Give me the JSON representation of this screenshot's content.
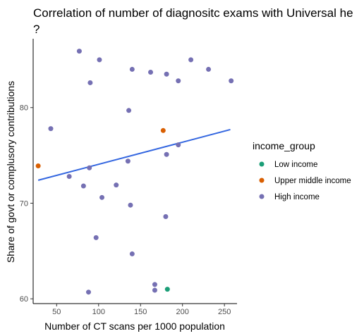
{
  "chart_data": {
    "type": "scatter",
    "title_line1": "Correlation of number of diagnositc exams with Universal he",
    "title_line2": "?",
    "xlabel": "Number of CT scans per 1000 population",
    "ylabel": "Share of govt or complusory contributions",
    "xlim": [
      22,
      265
    ],
    "ylim": [
      59.5,
      87.2
    ],
    "x_ticks": [
      50,
      100,
      150,
      200,
      250
    ],
    "y_ticks": [
      60,
      70,
      80
    ],
    "legend": {
      "title": "income_group",
      "position": "right",
      "entries": [
        {
          "label": "Low income",
          "color": "#1b9e77"
        },
        {
          "label": "Upper middle income",
          "color": "#d95f02"
        },
        {
          "label": "High income",
          "color": "#7570b3"
        }
      ]
    },
    "series": [
      {
        "name": "Low income",
        "color": "#1b9e77",
        "points": [
          [
            182,
            61.0
          ]
        ]
      },
      {
        "name": "Upper middle income",
        "color": "#d95f02",
        "points": [
          [
            28,
            73.9
          ],
          [
            177,
            77.6
          ]
        ]
      },
      {
        "name": "High income",
        "color": "#7570b3",
        "points": [
          [
            77,
            85.9
          ],
          [
            101,
            85.0
          ],
          [
            90,
            82.6
          ],
          [
            140,
            84.0
          ],
          [
            162,
            83.7
          ],
          [
            181,
            83.5
          ],
          [
            210,
            85.0
          ],
          [
            231,
            84.0
          ],
          [
            195,
            82.8
          ],
          [
            258,
            82.8
          ],
          [
            136,
            79.7
          ],
          [
            43,
            77.8
          ],
          [
            195,
            76.1
          ],
          [
            181,
            75.1
          ],
          [
            135,
            74.4
          ],
          [
            89,
            73.7
          ],
          [
            65,
            72.8
          ],
          [
            82,
            71.8
          ],
          [
            121,
            71.9
          ],
          [
            104,
            70.6
          ],
          [
            138,
            69.8
          ],
          [
            180,
            68.6
          ],
          [
            97,
            66.4
          ],
          [
            140,
            64.7
          ],
          [
            167,
            61.5
          ],
          [
            167,
            60.9
          ],
          [
            88,
            60.7
          ]
        ]
      }
    ],
    "trendline": {
      "type": "linear",
      "color": "#3366e0",
      "points": [
        [
          28,
          72.4
        ],
        [
          257,
          77.7
        ]
      ]
    },
    "grid": false
  }
}
